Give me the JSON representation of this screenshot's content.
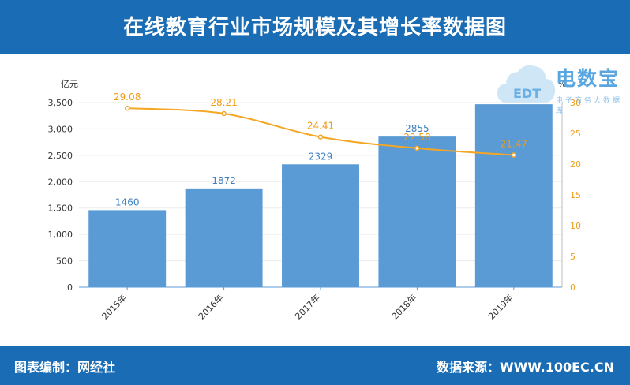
{
  "header": {
    "title": "在线教育行业市场规模及其增长率数据图"
  },
  "footer": {
    "left": "图表编制：网经社",
    "right": "数据来源：WWW.100EC.CN"
  },
  "logo": {
    "text": "电数宝",
    "sub": "电子商务大数据库",
    "badge": "EDT",
    "icon": "cloud-logo-icon"
  },
  "colors": {
    "bar": "#5b9bd5",
    "line": "#f5a623",
    "header": "#1a6db5",
    "bar_label": "#3f7fc1",
    "line_label": "#f09b14"
  },
  "chart_data": {
    "type": "bar",
    "categories": [
      "2015年",
      "2016年",
      "2017年",
      "2018年",
      "2019年"
    ],
    "series": [
      {
        "values": [
          1460,
          1872,
          2329,
          2855,
          3468
        ],
        "type": "bar",
        "axis": "left"
      },
      {
        "values": [
          29.08,
          28.21,
          24.41,
          22.58,
          21.47
        ],
        "type": "line",
        "axis": "right"
      }
    ],
    "ylabel": "亿元",
    "y2label": "%",
    "ylim": [
      0,
      3500
    ],
    "y2lim": [
      0,
      30
    ],
    "yticks": [
      "0",
      "500",
      "1,000",
      "1,500",
      "2,000",
      "2,500",
      "3,000",
      "3,500"
    ],
    "y2ticks": [
      "0",
      "5",
      "10",
      "15",
      "20",
      "25",
      "30"
    ]
  }
}
